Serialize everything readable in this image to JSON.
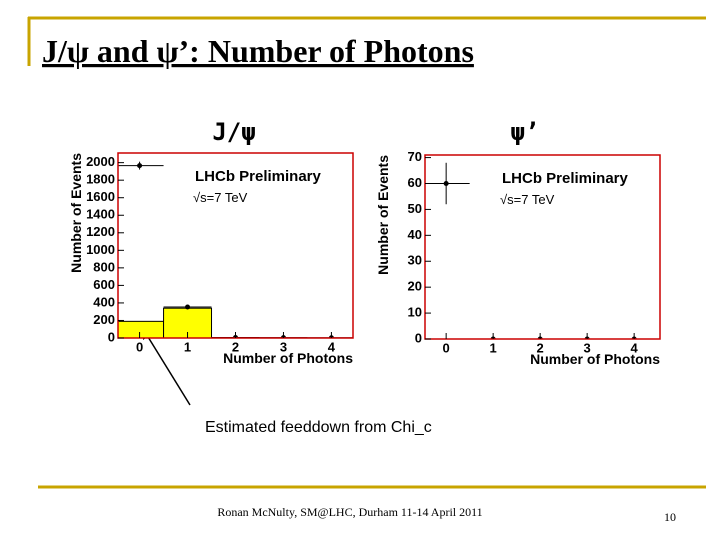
{
  "slide_title": "J/ψ and ψ’: Number of Photons",
  "annotation": "Estimated feeddown from Chi_c",
  "footer": "Ronan McNulty, SM@LHC, Durham 11-14 April 2011",
  "page_number": "10",
  "chart_data": [
    {
      "type": "histogram",
      "title": "J/ψ",
      "xlabel": "Number of Photons",
      "ylabel": "Number of Events",
      "annotations": [
        "LHCb Preliminary",
        "√s=7 TeV"
      ],
      "bins": [
        -0.5,
        0.5,
        1.5,
        2.5,
        3.5,
        4.5
      ],
      "series": [
        {
          "color": "#ffff00",
          "style": "fill",
          "values": [
            190,
            340,
            0,
            0,
            0
          ]
        },
        {
          "color": "#000000",
          "style": "points",
          "values": [
            1966,
            354,
            6,
            4,
            3
          ],
          "errors": [
            45,
            19,
            2,
            2,
            2
          ]
        }
      ],
      "xlim": [
        -0.45,
        4.45
      ],
      "ylim": [
        0,
        2110
      ],
      "xticks": [
        0,
        1,
        2,
        3,
        4
      ],
      "yticks": [
        0,
        200,
        400,
        600,
        800,
        1000,
        1200,
        1400,
        1600,
        1800,
        2000
      ],
      "frame_color": "#cc0000"
    },
    {
      "type": "histogram",
      "title": "ψ’",
      "xlabel": "Number of Photons",
      "ylabel": "Number of Events",
      "annotations": [
        "LHCb Preliminary",
        "√s=7 TeV"
      ],
      "bins": [
        -0.5,
        0.5,
        1.5,
        2.5,
        3.5,
        4.5
      ],
      "series": [
        {
          "color": "#000000",
          "style": "points",
          "values": [
            60,
            0,
            0,
            0,
            0
          ],
          "errors": [
            8,
            0,
            0,
            0,
            0
          ]
        }
      ],
      "xlim": [
        -0.45,
        4.55
      ],
      "ylim": [
        0,
        71
      ],
      "xticks": [
        0,
        1,
        2,
        3,
        4
      ],
      "yticks": [
        0,
        10,
        20,
        30,
        40,
        50,
        60,
        70
      ],
      "frame_color": "#cc0000"
    }
  ]
}
